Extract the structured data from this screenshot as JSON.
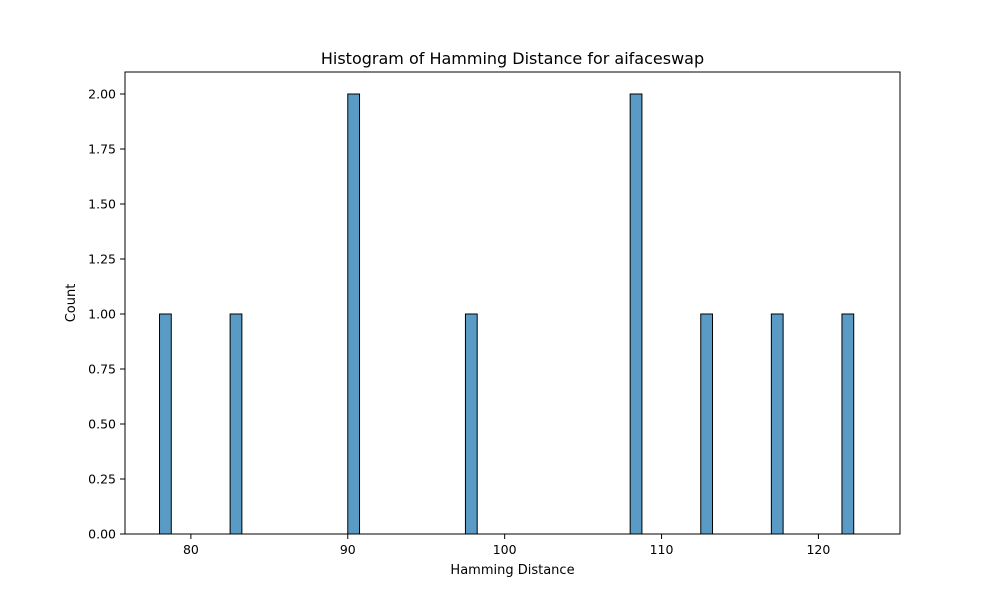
{
  "chart_data": {
    "type": "bar",
    "title": "Histogram of Hamming Distance for aifaceswap",
    "xlabel": "Hamming Distance",
    "ylabel": "Count",
    "xlim": [
      75.8,
      125.2
    ],
    "ylim": [
      0,
      2.1
    ],
    "x_ticks": [
      80,
      90,
      100,
      110,
      120
    ],
    "y_ticks": [
      0.0,
      0.25,
      0.5,
      0.75,
      1.0,
      1.25,
      1.5,
      1.75,
      2.0
    ],
    "y_tick_labels": [
      "0.00",
      "0.25",
      "0.50",
      "0.75",
      "1.00",
      "1.25",
      "1.50",
      "1.75",
      "2.00"
    ],
    "bin_width": 0.75,
    "bins": [
      {
        "x_start": 78.0,
        "count": 1
      },
      {
        "x_start": 82.5,
        "count": 1
      },
      {
        "x_start": 90.0,
        "count": 2
      },
      {
        "x_start": 97.5,
        "count": 1
      },
      {
        "x_start": 108.0,
        "count": 2
      },
      {
        "x_start": 112.5,
        "count": 1
      },
      {
        "x_start": 117.0,
        "count": 1
      },
      {
        "x_start": 121.5,
        "count": 1
      }
    ],
    "grid": false,
    "colors": {
      "bar_fill": "#5a9bc6",
      "bar_edge": "#000000",
      "axes": "#000000"
    }
  }
}
